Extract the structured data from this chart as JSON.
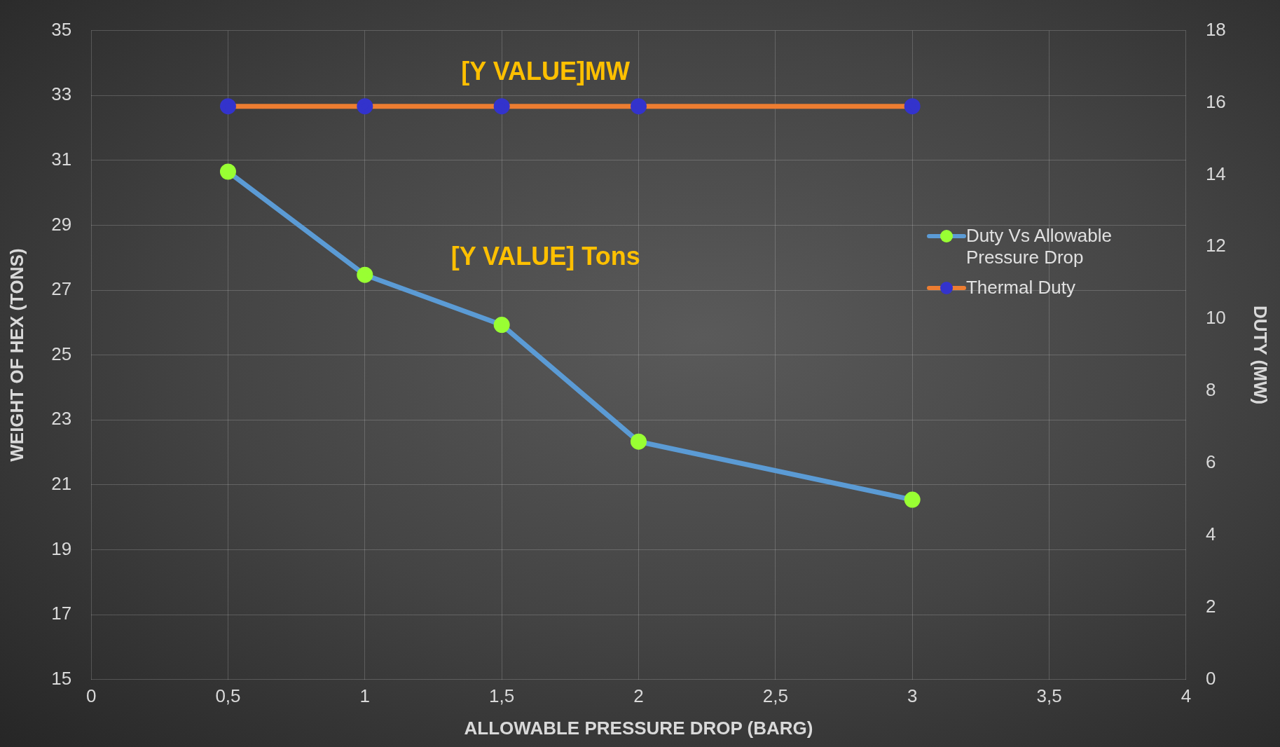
{
  "chart_data": {
    "type": "line",
    "xlabel": "ALLOWABLE PRESSURE DROP (BARG)",
    "ylabel": "WEIGHT OF HEX (TONS)",
    "y2label": "DUTY (MW)",
    "x": [
      0.5,
      1,
      1.5,
      2,
      3
    ],
    "series": [
      {
        "name": "Duty Vs Allowable Pressure Drop",
        "color": "#5b9bd5",
        "colors": [
          "#99ff33",
          "#99ff33",
          "#99ff33",
          "#99ff33",
          "#99ff33"
        ],
        "values": [
          30.65,
          27.47,
          25.93,
          22.33,
          20.54
        ]
      },
      {
        "name": "Thermal Duty",
        "color": "#ed7d31",
        "colors": [
          "#3333cc",
          "#3333cc",
          "#3333cc",
          "#3333cc",
          "#3333cc"
        ],
        "axis": "y2",
        "values": [
          15.9,
          15.9,
          15.9,
          15.9,
          15.9
        ]
      }
    ],
    "xlim": [
      0,
      4
    ],
    "xticks": [
      0,
      {
        "value": 0.5,
        "label": "0,5"
      },
      1,
      {
        "value": 1.5,
        "label": "1,5"
      },
      2,
      {
        "value": 2.5,
        "label": "2,5"
      },
      3,
      {
        "value": 3.5,
        "label": "3,5"
      },
      4
    ],
    "ylim": [
      15,
      35
    ],
    "yticks": [
      15,
      17,
      19,
      21,
      23,
      25,
      27,
      29,
      31,
      33,
      35
    ],
    "y2lim": [
      0,
      18
    ],
    "y2ticks": [
      0,
      2,
      4,
      6,
      8,
      10,
      12,
      14,
      16,
      18
    ],
    "annotations": [
      "[Y VALUE]MW",
      "[Y VALUE] Tons"
    ],
    "grid": true,
    "legend": "right",
    "marker": "circle",
    "line_style": "solid"
  }
}
